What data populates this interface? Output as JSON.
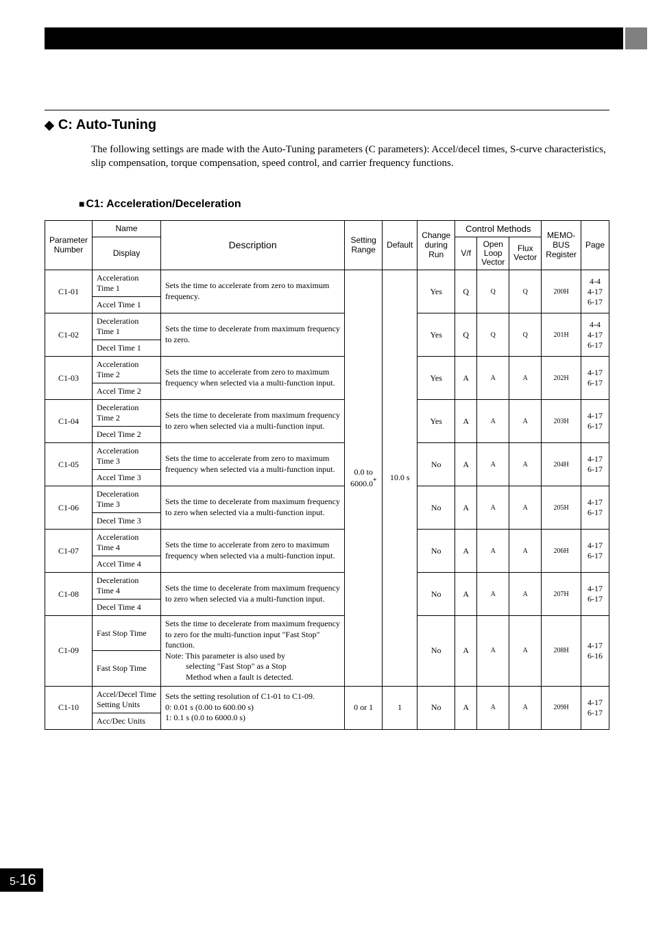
{
  "page_number_prefix": "5-",
  "page_number": "16",
  "section": {
    "title": "C: Auto-Tuning",
    "intro": "The following settings are made with the Auto-Tuning parameters (C parameters): Accel/decel times, S-curve characteristics, slip compensation, torque compensation, speed control, and carrier frequency functions."
  },
  "subsection": "C1: Acceleration/Deceleration",
  "headers": {
    "param": "Parameter Number",
    "name": "Name",
    "display": "Display",
    "description": "Description",
    "range": "Setting Range",
    "default": "Default",
    "change": "Change during Run",
    "control": "Control Methods",
    "vf": "V/f",
    "open": "Open Loop Vector",
    "flux": "Flux Vector",
    "memo": "MEMO-BUS Register",
    "page": "Page"
  },
  "shared_range": "0.0 to 6000.0",
  "shared_range_sup": "*",
  "shared_default": "10.0 s",
  "rows": [
    {
      "param": "C1-01",
      "name": "Acceleration Time 1",
      "display": "Accel Time 1",
      "desc": "Sets the time to accelerate from zero to maximum frequency.",
      "change": "Yes",
      "vf": "Q",
      "open": "Q",
      "flux": "Q",
      "memo": "200H",
      "page": "4-4\n4-17\n6-17"
    },
    {
      "param": "C1-02",
      "name": "Deceleration Time 1",
      "display": "Decel Time 1",
      "desc": "Sets the time to decelerate from maximum frequency to zero.",
      "change": "Yes",
      "vf": "Q",
      "open": "Q",
      "flux": "Q",
      "memo": "201H",
      "page": "4-4\n4-17\n6-17"
    },
    {
      "param": "C1-03",
      "name": "Acceleration Time 2",
      "display": "Accel Time 2",
      "desc": "Sets the time to accelerate from zero to maximum frequency when selected via a multi-function input.",
      "change": "Yes",
      "vf": "A",
      "open": "A",
      "flux": "A",
      "memo": "202H",
      "page": "4-17\n6-17"
    },
    {
      "param": "C1-04",
      "name": "Deceleration Time 2",
      "display": "Decel Time 2",
      "desc": "Sets the time to decelerate from maximum frequency to zero when selected via a multi-function input.",
      "change": "Yes",
      "vf": "A",
      "open": "A",
      "flux": "A",
      "memo": "203H",
      "page": "4-17\n6-17"
    },
    {
      "param": "C1-05",
      "name": "Acceleration Time 3",
      "display": "Accel Time 3",
      "desc": "Sets the time to accelerate from zero to maximum frequency when selected via a multi-function input.",
      "change": "No",
      "vf": "A",
      "open": "A",
      "flux": "A",
      "memo": "204H",
      "page": "4-17\n6-17"
    },
    {
      "param": "C1-06",
      "name": "Deceleration Time 3",
      "display": "Decel Time 3",
      "desc": "Sets the time to decelerate from maximum frequency to zero when selected via a multi-function input.",
      "change": "No",
      "vf": "A",
      "open": "A",
      "flux": "A",
      "memo": "205H",
      "page": "4-17\n6-17"
    },
    {
      "param": "C1-07",
      "name": "Acceleration Time 4",
      "display": "Accel Time 4",
      "desc": "Sets the time to accelerate from zero to maximum frequency when selected via a multi-function input.",
      "change": "No",
      "vf": "A",
      "open": "A",
      "flux": "A",
      "memo": "206H",
      "page": "4-17\n6-17"
    },
    {
      "param": "C1-08",
      "name": "Deceleration Time 4",
      "display": "Decel Time 4",
      "desc": "Sets the time to decelerate from maximum frequency to zero when selected via a multi-function input.",
      "change": "No",
      "vf": "A",
      "open": "A",
      "flux": "A",
      "memo": "207H",
      "page": "4-17\n6-17"
    },
    {
      "param": "C1-09",
      "name": "Fast Stop Time",
      "display": "Fast Stop Time",
      "desc": "Sets the time to decelerate from maximum frequency to zero for the multi-function input \"Fast Stop\" function.",
      "note": "Note: This parameter is also used by selecting \"Fast Stop\" as a Stop Method when a fault is detected.",
      "change": "No",
      "vf": "A",
      "open": "A",
      "flux": "A",
      "memo": "208H",
      "page": "4-17\n6-16"
    }
  ],
  "row10": {
    "param": "C1-10",
    "name": "Accel/Decel Time Setting Units",
    "display": "Acc/Dec Units",
    "desc": "Sets the setting resolution of C1-01 to C1-09.",
    "opt0": "0:  0.01 s (0.00 to 600.00 s)",
    "opt1": "1:  0.1 s (0.0 to 6000.0 s)",
    "range": "0 or 1",
    "default": "1",
    "change": "No",
    "vf": "A",
    "open": "A",
    "flux": "A",
    "memo": "209H",
    "page": "4-17\n6-17"
  }
}
